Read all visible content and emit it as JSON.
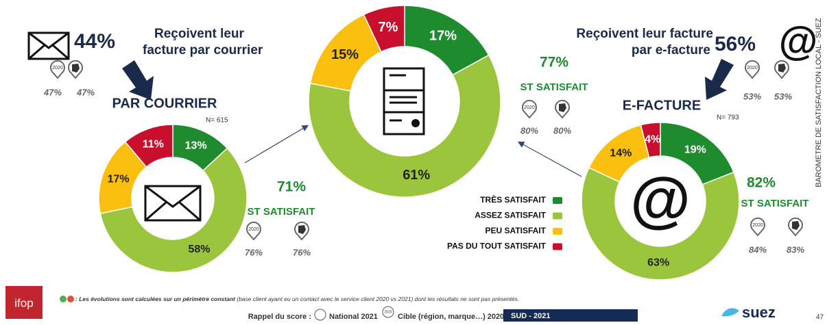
{
  "chart_data": [
    {
      "type": "pie",
      "title": "PAR COURRIER",
      "n_label": "N= 615",
      "values": [
        13,
        58,
        17,
        11
      ],
      "value_labels": [
        "13%",
        "58%",
        "17%",
        "11%"
      ],
      "colors": [
        "#1e8c2e",
        "#9bc53d",
        "#fbbf0f",
        "#c8102e"
      ],
      "satisfied": "71%",
      "satisfied_label": "ST SATISFAIT",
      "comparisons": [
        "76%",
        "76%"
      ]
    },
    {
      "type": "pie",
      "categories": [
        "TRÈS SATISFAIT",
        "ASSEZ SATISFAIT",
        "PEU SATISFAIT",
        "PAS DU TOUT SATISFAIT"
      ],
      "values": [
        17,
        61,
        15,
        7
      ],
      "value_labels": [
        "17%",
        "61%",
        "15%",
        "7%"
      ],
      "colors": [
        "#1e8c2e",
        "#9bc53d",
        "#fbbf0f",
        "#c8102e"
      ],
      "satisfied": "77%",
      "satisfied_label": "ST SATISFAIT",
      "comparisons": [
        "80%",
        "80%"
      ]
    },
    {
      "type": "pie",
      "title": "E-FACTURE",
      "n_label": "N= 793",
      "values": [
        19,
        63,
        14,
        4
      ],
      "value_labels": [
        "19%",
        "63%",
        "14%",
        "4%"
      ],
      "colors": [
        "#1e8c2e",
        "#9bc53d",
        "#fbbf0f",
        "#c8102e"
      ],
      "satisfied": "82%",
      "satisfied_label": "ST SATISFAIT",
      "comparisons": [
        "84%",
        "83%"
      ]
    }
  ],
  "courrier": {
    "share": "44%",
    "line1": "Reçoivent leur",
    "line2": "facture par courrier",
    "comparisons": [
      "47%",
      "47%"
    ]
  },
  "efacture": {
    "share": "56%",
    "line1": "Reçoivent leur facture",
    "line2": "par e-facture",
    "comparisons": [
      "53%",
      "53%"
    ],
    "icon": "@"
  },
  "pin_year": "2020",
  "side_title": "BAROMETRE DE SATISFACTION LOCAL - SUEZ",
  "footer": {
    "note_lead": ": Les évolutions sont calculées sur un périmètre constant",
    "note_rest": "(base client ayant eu un contact avec le service client 2020 vs 2021) dont les résultats ne sont pas présentés.",
    "recall": "Rappel du score :",
    "national": "National 2021",
    "target": "Cible (région, marque…) 2020",
    "region": "SUD  - 2021",
    "brand": "suez",
    "ifop": "ifop",
    "page": "47"
  }
}
